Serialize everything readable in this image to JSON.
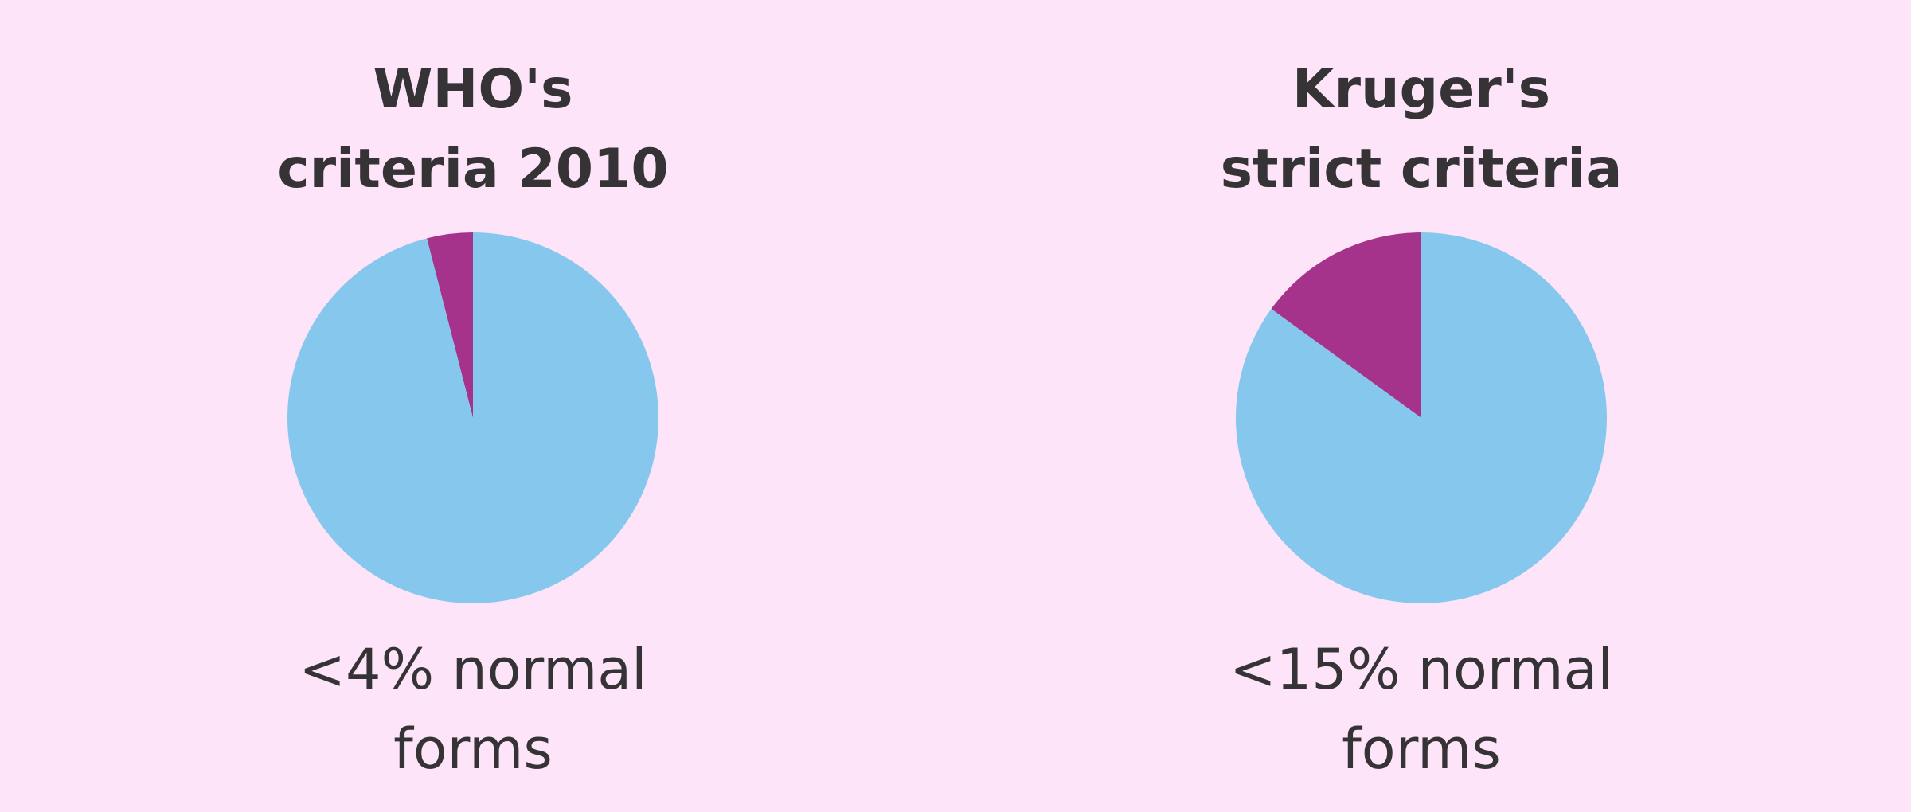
{
  "chart_data": [
    {
      "type": "pie",
      "title": [
        "WHO's",
        "criteria 2010"
      ],
      "values": [
        4,
        96
      ],
      "colors": [
        "#a6338b",
        "#86c8ed"
      ],
      "caption": [
        "<4% normal",
        "forms"
      ]
    },
    {
      "type": "pie",
      "title": [
        "Kruger's",
        "strict criteria"
      ],
      "values": [
        15,
        85
      ],
      "colors": [
        "#a6338b",
        "#86c8ed"
      ],
      "caption": [
        "<15% normal",
        "forms"
      ]
    }
  ]
}
